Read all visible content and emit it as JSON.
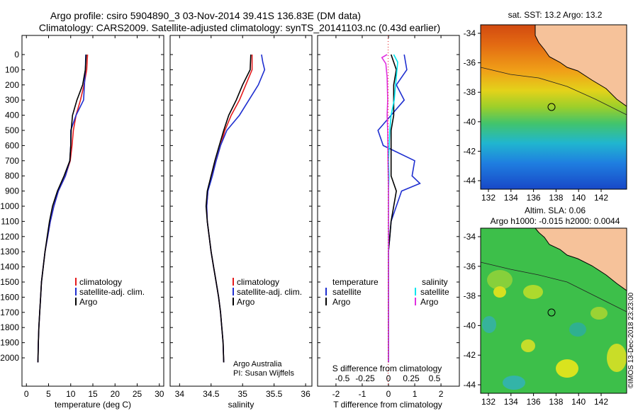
{
  "header": {
    "title_line1": "Argo profile: csiro 5904890_3 03-Nov-2014 39.41S 136.83E (DM data)",
    "title_line2": "Climatology: CARS2009. Satellite-adjusted climatology: synTS_20141103.nc (0.43d earlier)"
  },
  "depth_ticks": [
    "0",
    "100",
    "200",
    "300",
    "400",
    "500",
    "600",
    "700",
    "800",
    "900",
    "1000",
    "1100",
    "1200",
    "1300",
    "1400",
    "1500",
    "1600",
    "1700",
    "1800",
    "1900",
    "2000"
  ],
  "panels": {
    "temperature": {
      "xlabel": "temperature (deg C)",
      "xticks": [
        "0",
        "5",
        "10",
        "15",
        "20",
        "25",
        "30"
      ],
      "legend": [
        "climatology",
        "satellite-adj. clim.",
        "Argo"
      ]
    },
    "salinity": {
      "xlabel": "salinity",
      "xticks": [
        "34",
        "34.5",
        "35",
        "35.5",
        "36"
      ],
      "legend": [
        "climatology",
        "satellite-adj. clim.",
        "Argo"
      ],
      "credit1": "Argo Australia",
      "credit2": "PI: Susan Wijffels"
    },
    "difference": {
      "xlabel": "T difference from climatology",
      "top_label": "S difference from climatology",
      "xticks": [
        "-2",
        "-1",
        "0",
        "1",
        "2"
      ],
      "top_ticks": [
        "-0.5",
        "-0.25",
        "0",
        "0.25",
        "0.5"
      ],
      "legend_left_title": "temperature",
      "legend_left": [
        "satellite",
        "Argo"
      ],
      "legend_right_title": "salinity",
      "legend_right": [
        "satellite",
        "Argo"
      ]
    }
  },
  "maps": {
    "sst": {
      "title": "sat. SST: 13.2 Argo: 13.2",
      "yticks": [
        "-34",
        "-36",
        "-38",
        "-40",
        "-42",
        "-44"
      ],
      "xticks": [
        "132",
        "134",
        "136",
        "138",
        "140",
        "142"
      ]
    },
    "sla": {
      "title1": "Altim. SLA: 0.06",
      "title2": "Argo h1000: -0.015 h2000: 0.0044",
      "yticks": [
        "-34",
        "-36",
        "-38",
        "-40",
        "-42",
        "-44"
      ],
      "xticks": [
        "132",
        "134",
        "136",
        "138",
        "140",
        "142"
      ]
    }
  },
  "stamp": "©IMOS 13-Dec-2018 23:23:00",
  "colors": {
    "climatology": "#e41a1c",
    "satellite": "#1f2fd0",
    "argo": "#000000",
    "sat_salinity": "#00e5ee",
    "argo_salinity": "#e030e0",
    "land": "#f6c29a"
  },
  "chart_data": [
    {
      "type": "line",
      "title": "",
      "xlabel": "temperature (deg C)",
      "ylabel": "",
      "xlim": [
        -1,
        31
      ],
      "ylim": [
        2050,
        0
      ],
      "series": [
        {
          "name": "climatology",
          "color": "#e41a1c",
          "points": [
            [
              13.8,
              0
            ],
            [
              13.6,
              100
            ],
            [
              13.0,
              200
            ],
            [
              12.2,
              300
            ],
            [
              11.2,
              400
            ],
            [
              10.6,
              500
            ],
            [
              10.3,
              600
            ],
            [
              9.9,
              700
            ],
            [
              8.8,
              800
            ],
            [
              7.2,
              900
            ],
            [
              6.2,
              1000
            ],
            [
              5.4,
              1100
            ],
            [
              4.8,
              1200
            ],
            [
              4.2,
              1300
            ],
            [
              3.8,
              1400
            ],
            [
              3.4,
              1500
            ],
            [
              3.2,
              1600
            ],
            [
              3.0,
              1700
            ],
            [
              2.8,
              1800
            ],
            [
              2.7,
              1900
            ],
            [
              2.6,
              2030
            ]
          ]
        },
        {
          "name": "satellite-adj. clim.",
          "color": "#1f2fd0",
          "points": [
            [
              13.4,
              0
            ],
            [
              13.3,
              100
            ],
            [
              13.1,
              200
            ],
            [
              12.9,
              300
            ],
            [
              11.2,
              400
            ],
            [
              10.0,
              500
            ],
            [
              10.0,
              600
            ],
            [
              9.8,
              700
            ],
            [
              8.8,
              800
            ],
            [
              7.2,
              900
            ],
            [
              6.2,
              1000
            ],
            [
              5.4,
              1100
            ],
            [
              4.8,
              1200
            ],
            [
              4.2,
              1300
            ],
            [
              3.8,
              1400
            ],
            [
              3.4,
              1500
            ],
            [
              3.2,
              1600
            ],
            [
              3.0,
              1700
            ],
            [
              2.8,
              1800
            ],
            [
              2.7,
              1900
            ],
            [
              2.6,
              2030
            ]
          ]
        },
        {
          "name": "Argo",
          "color": "#000000",
          "points": [
            [
              13.5,
              0
            ],
            [
              13.3,
              100
            ],
            [
              12.7,
              200
            ],
            [
              11.4,
              300
            ],
            [
              10.4,
              400
            ],
            [
              10.1,
              500
            ],
            [
              10.0,
              600
            ],
            [
              9.8,
              700
            ],
            [
              8.5,
              800
            ],
            [
              7.0,
              900
            ],
            [
              5.9,
              1000
            ],
            [
              5.2,
              1100
            ],
            [
              4.7,
              1200
            ],
            [
              4.2,
              1300
            ],
            [
              3.8,
              1400
            ],
            [
              3.4,
              1500
            ],
            [
              3.2,
              1600
            ],
            [
              3.0,
              1700
            ],
            [
              2.8,
              1800
            ],
            [
              2.7,
              1900
            ],
            [
              2.6,
              2030
            ]
          ]
        }
      ]
    },
    {
      "type": "line",
      "title": "",
      "xlabel": "salinity",
      "ylabel": "",
      "xlim": [
        33.85,
        36.1
      ],
      "ylim": [
        2050,
        0
      ],
      "series": [
        {
          "name": "climatology",
          "color": "#e41a1c",
          "points": [
            [
              35.15,
              0
            ],
            [
              35.15,
              100
            ],
            [
              35.05,
              200
            ],
            [
              34.95,
              300
            ],
            [
              34.82,
              400
            ],
            [
              34.72,
              500
            ],
            [
              34.65,
              600
            ],
            [
              34.58,
              700
            ],
            [
              34.5,
              800
            ],
            [
              34.45,
              900
            ],
            [
              34.43,
              1000
            ],
            [
              34.44,
              1100
            ],
            [
              34.47,
              1200
            ],
            [
              34.5,
              1300
            ],
            [
              34.54,
              1400
            ],
            [
              34.58,
              1500
            ],
            [
              34.62,
              1600
            ],
            [
              34.65,
              1700
            ],
            [
              34.67,
              1800
            ],
            [
              34.69,
              1900
            ],
            [
              34.7,
              2030
            ]
          ]
        },
        {
          "name": "satellite-adj. clim.",
          "color": "#1f2fd0",
          "points": [
            [
              35.3,
              0
            ],
            [
              35.32,
              50
            ],
            [
              35.35,
              100
            ],
            [
              35.25,
              200
            ],
            [
              35.1,
              300
            ],
            [
              34.95,
              400
            ],
            [
              34.75,
              500
            ],
            [
              34.65,
              600
            ],
            [
              34.58,
              700
            ],
            [
              34.52,
              800
            ],
            [
              34.45,
              900
            ],
            [
              34.43,
              1000
            ],
            [
              34.44,
              1100
            ],
            [
              34.47,
              1200
            ],
            [
              34.5,
              1300
            ],
            [
              34.54,
              1400
            ],
            [
              34.58,
              1500
            ],
            [
              34.62,
              1600
            ],
            [
              34.65,
              1700
            ],
            [
              34.67,
              1800
            ],
            [
              34.69,
              1900
            ],
            [
              34.7,
              2030
            ]
          ]
        },
        {
          "name": "Argo",
          "color": "#000000",
          "points": [
            [
              35.13,
              0
            ],
            [
              35.12,
              100
            ],
            [
              35.0,
              200
            ],
            [
              34.9,
              300
            ],
            [
              34.78,
              400
            ],
            [
              34.7,
              500
            ],
            [
              34.63,
              600
            ],
            [
              34.56,
              700
            ],
            [
              34.5,
              800
            ],
            [
              34.44,
              900
            ],
            [
              34.42,
              1000
            ],
            [
              34.44,
              1100
            ],
            [
              34.47,
              1200
            ],
            [
              34.5,
              1300
            ],
            [
              34.54,
              1400
            ],
            [
              34.58,
              1500
            ],
            [
              34.62,
              1600
            ],
            [
              34.65,
              1700
            ],
            [
              34.67,
              1800
            ],
            [
              34.69,
              1900
            ],
            [
              34.7,
              2030
            ]
          ]
        }
      ]
    },
    {
      "type": "line",
      "title": "",
      "xlabel": "T difference from climatology",
      "ylabel": "",
      "xlim": [
        -2.7,
        2.7
      ],
      "ylim": [
        2050,
        0
      ],
      "series": [
        {
          "name": "temperature satellite",
          "color": "#1f2fd0",
          "points": [
            [
              0.6,
              0
            ],
            [
              0.7,
              100
            ],
            [
              0.3,
              200
            ],
            [
              0.6,
              300
            ],
            [
              0.1,
              400
            ],
            [
              -0.4,
              500
            ],
            [
              -0.2,
              600
            ],
            [
              1.0,
              700
            ],
            [
              0.9,
              800
            ],
            [
              1.2,
              850
            ],
            [
              0.5,
              900
            ],
            [
              0.3,
              1000
            ],
            [
              0.1,
              1100
            ],
            [
              0.05,
              1200
            ],
            [
              0,
              1300
            ],
            [
              0,
              1500
            ],
            [
              0,
              2030
            ]
          ]
        },
        {
          "name": "temperature Argo",
          "color": "#000000",
          "points": [
            [
              0.1,
              0
            ],
            [
              0.3,
              100
            ],
            [
              0.2,
              200
            ],
            [
              0.2,
              300
            ],
            [
              0.2,
              400
            ],
            [
              0.1,
              500
            ],
            [
              0.1,
              600
            ],
            [
              0.1,
              700
            ],
            [
              0.1,
              800
            ],
            [
              0.3,
              900
            ],
            [
              0.2,
              1000
            ],
            [
              0.1,
              1100
            ],
            [
              0.05,
              1200
            ],
            [
              0,
              1300
            ],
            [
              0,
              1500
            ],
            [
              0,
              2030
            ]
          ]
        },
        {
          "name": "salinity satellite",
          "color": "#00e5ee",
          "points": [
            [
              0.2,
              0
            ],
            [
              0.35,
              50
            ],
            [
              0.27,
              200
            ],
            [
              0.22,
              300
            ],
            [
              0.1,
              400
            ],
            [
              0.05,
              500
            ],
            [
              0.0,
              700
            ],
            [
              0.02,
              800
            ],
            [
              0.0,
              900
            ],
            [
              0.0,
              1000
            ],
            [
              0.0,
              1200
            ],
            [
              0.0,
              1500
            ],
            [
              0.0,
              2030
            ]
          ]
        },
        {
          "name": "salinity Argo",
          "color": "#e030e0",
          "points": [
            [
              -0.05,
              0
            ],
            [
              -0.25,
              20
            ],
            [
              -0.1,
              60
            ],
            [
              -0.05,
              150
            ],
            [
              -0.03,
              300
            ],
            [
              -0.05,
              400
            ],
            [
              -0.03,
              500
            ],
            [
              -0.02,
              700
            ],
            [
              0.0,
              900
            ],
            [
              0.0,
              1200
            ],
            [
              0.0,
              1500
            ],
            [
              0.0,
              2030
            ]
          ]
        }
      ]
    }
  ]
}
